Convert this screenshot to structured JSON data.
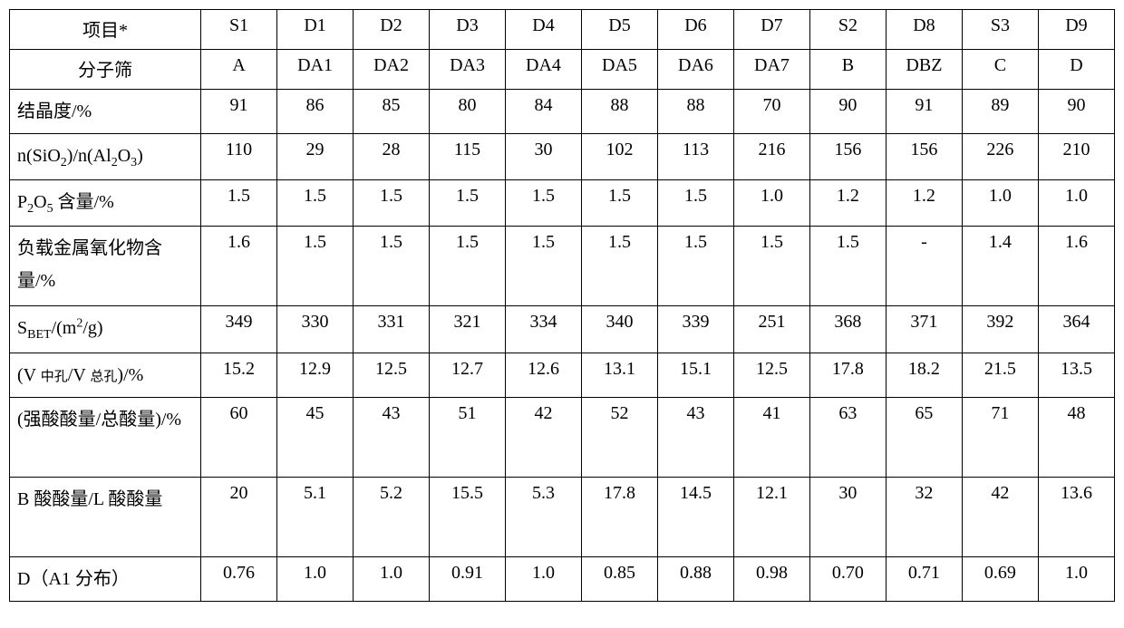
{
  "table": {
    "background_color": "#ffffff",
    "border_color": "#000000",
    "text_color": "#000000",
    "font_family": "Times New Roman / SimSun",
    "font_size_pt": 15,
    "columns": [
      "项目*",
      "S1",
      "D1",
      "D2",
      "D3",
      "D4",
      "D5",
      "D6",
      "D7",
      "S2",
      "D8",
      "S3",
      "D9"
    ],
    "rows": [
      {
        "label_html": "分子筛",
        "label_plain": "分子筛",
        "label_align": "center",
        "values": [
          "A",
          "DA1",
          "DA2",
          "DA3",
          "DA4",
          "DA5",
          "DA6",
          "DA7",
          "B",
          "DBZ",
          "C",
          "D"
        ]
      },
      {
        "label_html": "结晶度/%",
        "label_plain": "结晶度/%",
        "label_align": "left",
        "values": [
          "91",
          "86",
          "85",
          "80",
          "84",
          "88",
          "88",
          "70",
          "90",
          "91",
          "89",
          "90"
        ]
      },
      {
        "label_html": "n(SiO<sub>2</sub>)/n(Al<sub>2</sub>O<sub>3</sub>)",
        "label_plain": "n(SiO2)/n(Al2O3)",
        "label_align": "left",
        "values": [
          "110",
          "29",
          "28",
          "115",
          "30",
          "102",
          "113",
          "216",
          "156",
          "156",
          "226",
          "210"
        ]
      },
      {
        "label_html": "P<sub>2</sub>O<sub>5</sub> 含量/%",
        "label_plain": "P2O5 含量/%",
        "label_align": "left",
        "values": [
          "1.5",
          "1.5",
          "1.5",
          "1.5",
          "1.5",
          "1.5",
          "1.5",
          "1.0",
          "1.2",
          "1.2",
          "1.0",
          "1.0"
        ]
      },
      {
        "label_html": "负载金属氧化物含量/%",
        "label_plain": "负载金属氧化物含量/%",
        "label_align": "left",
        "tall": true,
        "values": [
          "1.6",
          "1.5",
          "1.5",
          "1.5",
          "1.5",
          "1.5",
          "1.5",
          "1.5",
          "1.5",
          "-",
          "1.4",
          "1.6"
        ]
      },
      {
        "label_html": "S<sub>BET</sub>/(m<sup>2</sup>/g)",
        "label_plain": "SBET/(m2/g)",
        "label_align": "left",
        "values": [
          "349",
          "330",
          "331",
          "321",
          "334",
          "340",
          "339",
          "251",
          "368",
          "371",
          "392",
          "364"
        ]
      },
      {
        "label_html": "(V <span class=\"sm\">中孔</span>/V <span class=\"sm\">总孔</span>)/%",
        "label_plain": "(V 中孔/V 总孔)/%",
        "label_align": "left",
        "values": [
          "15.2",
          "12.9",
          "12.5",
          "12.7",
          "12.6",
          "13.1",
          "15.1",
          "12.5",
          "17.8",
          "18.2",
          "21.5",
          "13.5"
        ]
      },
      {
        "label_html": "(强酸酸量/总酸量)/%",
        "label_plain": "(强酸酸量/总酸量)/%",
        "label_align": "left",
        "tall": true,
        "values": [
          "60",
          "45",
          "43",
          "51",
          "42",
          "52",
          "43",
          "41",
          "63",
          "65",
          "71",
          "48"
        ]
      },
      {
        "label_html": "B 酸酸量/L 酸酸量",
        "label_plain": "B 酸酸量/L 酸酸量",
        "label_align": "left",
        "tall": true,
        "values": [
          "20",
          "5.1",
          "5.2",
          "15.5",
          "5.3",
          "17.8",
          "14.5",
          "12.1",
          "30",
          "32",
          "42",
          "13.6"
        ]
      },
      {
        "label_html": "D（A1 分布）",
        "label_plain": "D（A1 分布）",
        "label_align": "left",
        "values": [
          "0.76",
          "1.0",
          "1.0",
          "0.91",
          "1.0",
          "0.85",
          "0.88",
          "0.98",
          "0.70",
          "0.71",
          "0.69",
          "1.0"
        ]
      }
    ]
  }
}
